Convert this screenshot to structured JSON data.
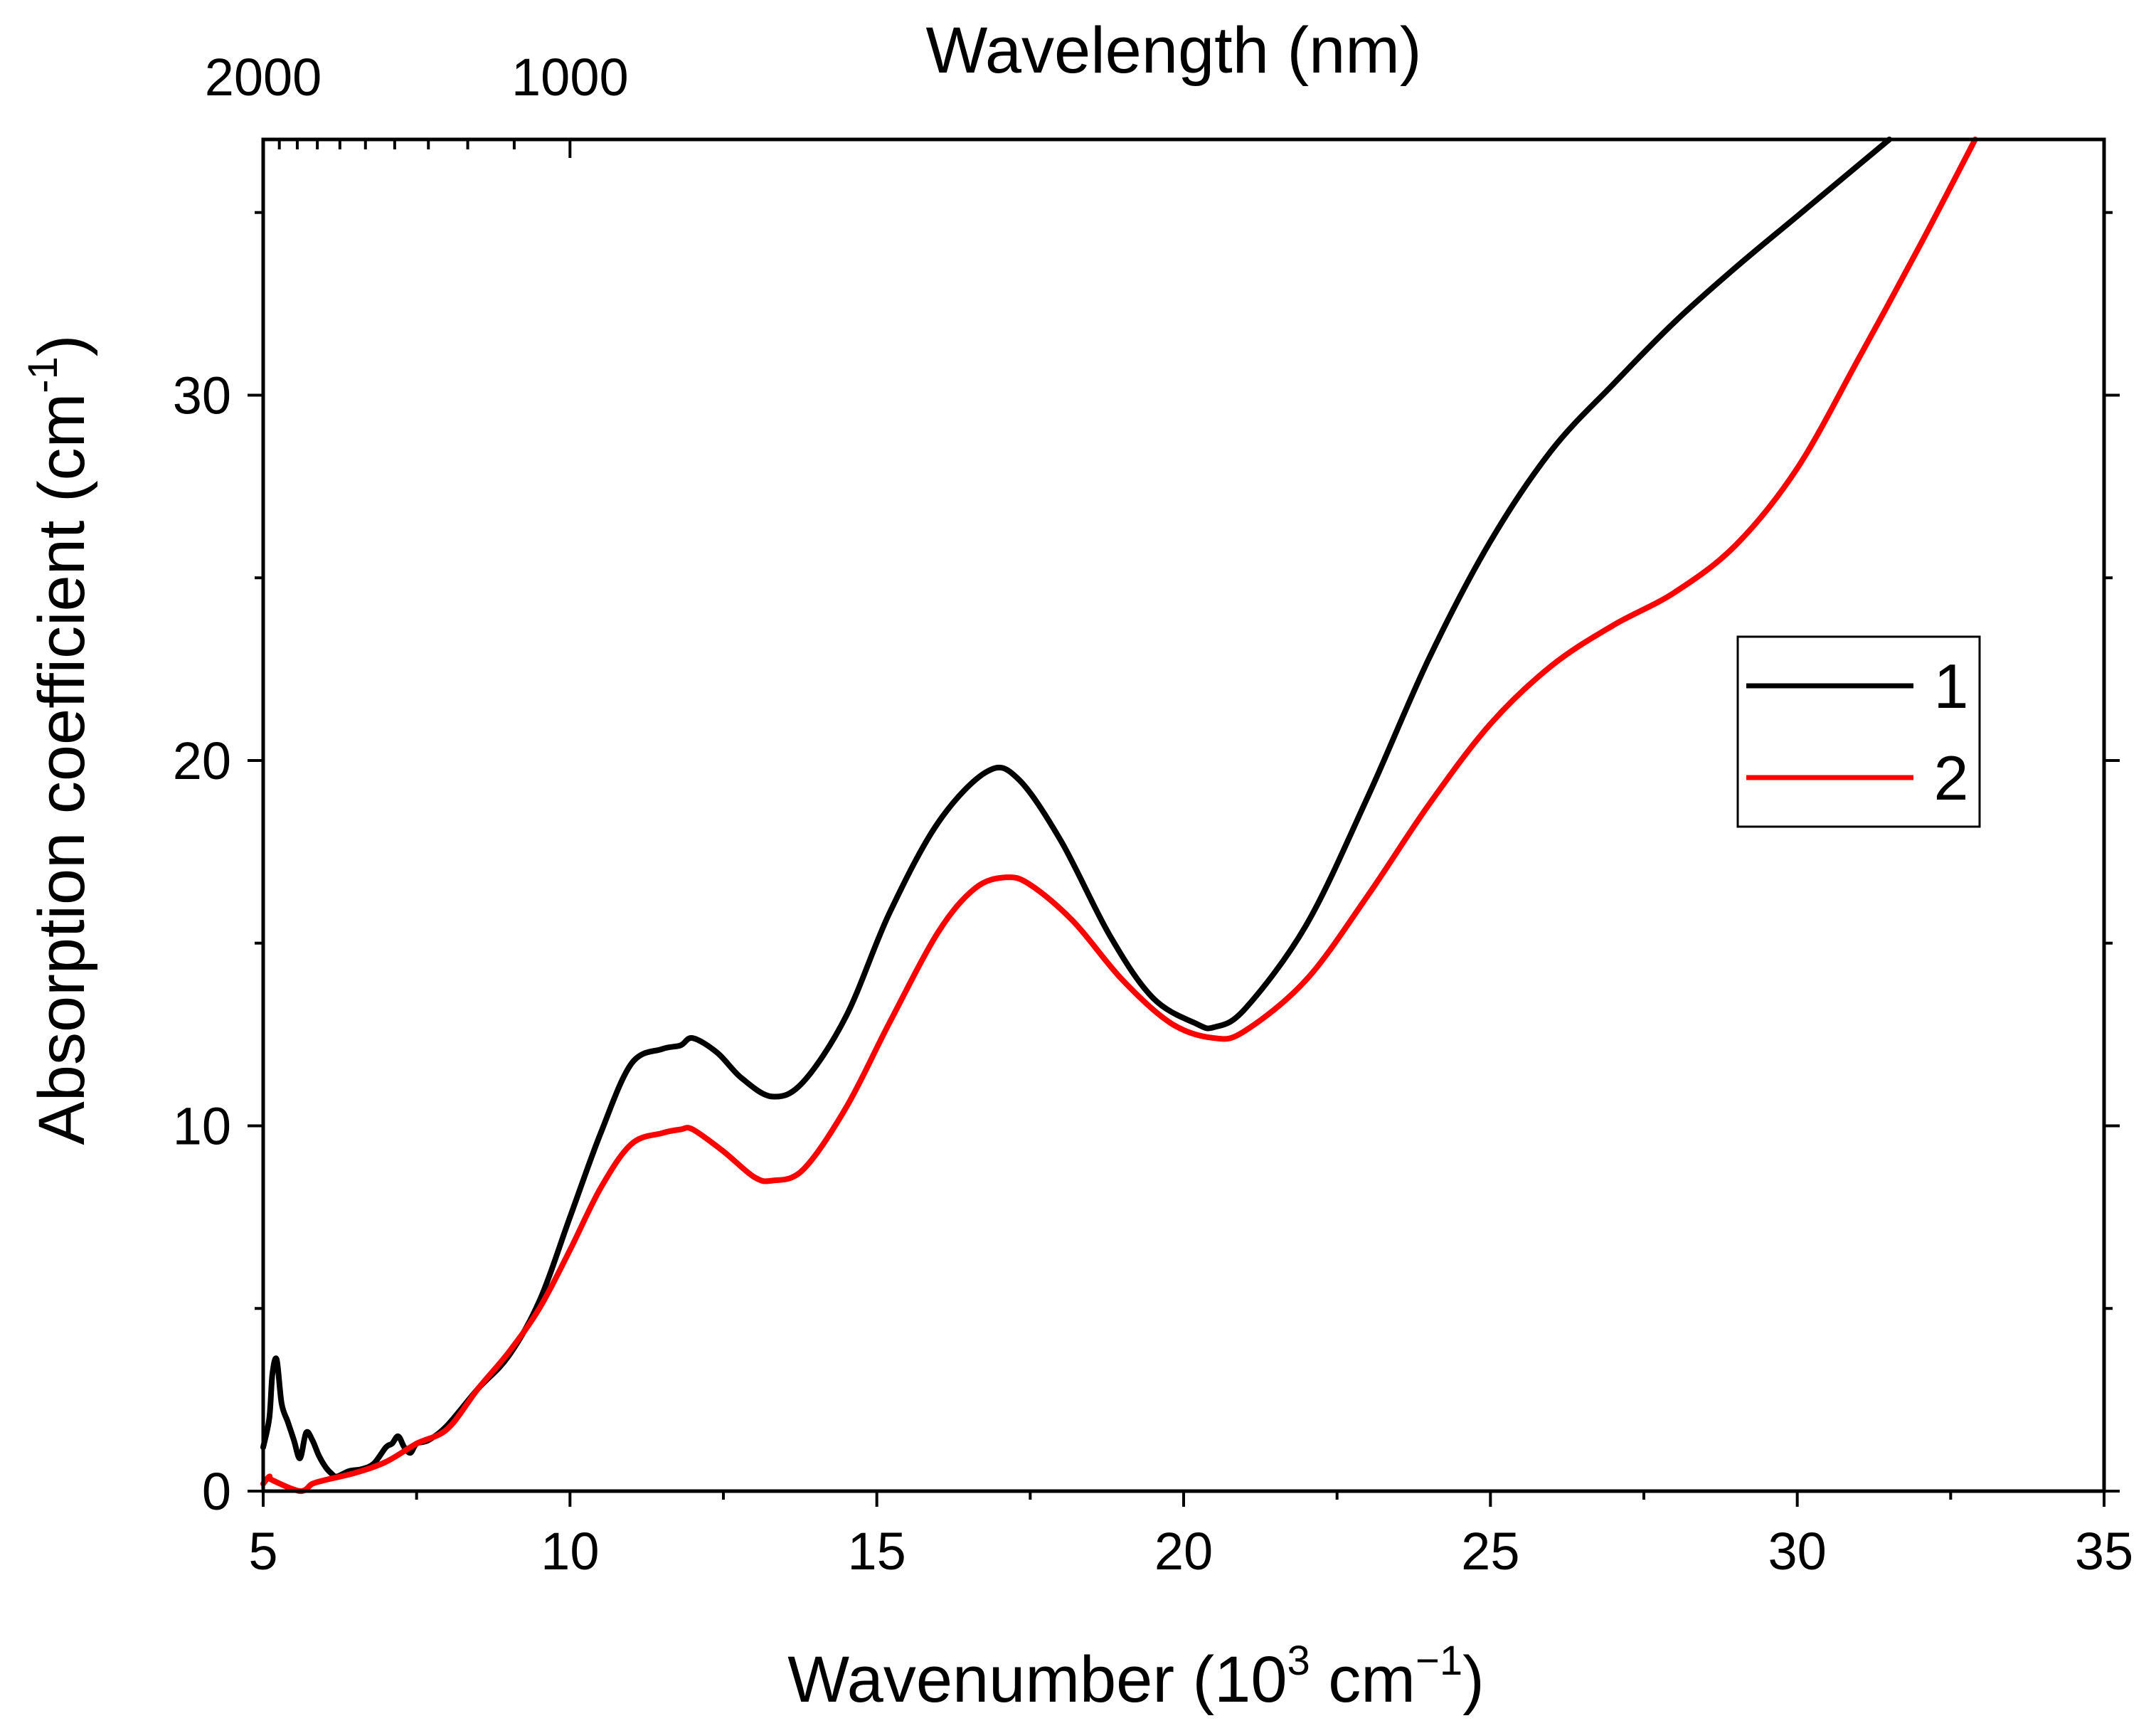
{
  "chart_data": {
    "type": "line",
    "xlabel": {
      "main": "Wavenumber (10",
      "sup1": "3",
      "mid": " cm",
      "sup2": "−1",
      "end": ")"
    },
    "ylabel": {
      "main": "Absorption coefficient (cm",
      "sup": "-1",
      "end": ")"
    },
    "top_axis_label": "Wavelength (nm)",
    "top_axis_ticks": [
      {
        "value": 2000,
        "label": "2000"
      },
      {
        "value": 1000,
        "label": "1000"
      }
    ],
    "xlim": [
      5,
      35
    ],
    "ylim": [
      0,
      37
    ],
    "xticks": [
      5,
      10,
      15,
      20,
      25,
      30,
      35
    ],
    "yticks": [
      0,
      10,
      20,
      30
    ],
    "grid": false,
    "legend_position": "right-middle",
    "series": [
      {
        "name": "1",
        "color": "#000000",
        "x": [
          5.0,
          5.1,
          5.15,
          5.22,
          5.3,
          5.4,
          5.5,
          5.6,
          5.7,
          5.8,
          5.9,
          6.0,
          6.1,
          6.2,
          6.4,
          6.6,
          6.8,
          7.0,
          7.1,
          7.2,
          7.3,
          7.4,
          7.5,
          7.7,
          8.0,
          8.5,
          9.0,
          9.5,
          10.0,
          10.5,
          11.0,
          11.5,
          11.8,
          12.0,
          12.4,
          12.8,
          13.3,
          13.8,
          14.5,
          15.2,
          16.0,
          16.8,
          17.3,
          18.0,
          18.8,
          19.5,
          20.2,
          20.5,
          21.0,
          22.0,
          23.0,
          24.0,
          25.0,
          26.0,
          27.0,
          28.0,
          29.0,
          30.0,
          31.0,
          31.5
        ],
        "values": [
          1.2,
          2.0,
          3.2,
          3.6,
          2.4,
          1.9,
          1.4,
          0.9,
          1.6,
          1.4,
          1.0,
          0.7,
          0.5,
          0.4,
          0.55,
          0.6,
          0.75,
          1.2,
          1.3,
          1.5,
          1.2,
          1.05,
          1.3,
          1.4,
          1.8,
          2.8,
          3.7,
          5.2,
          7.5,
          9.8,
          11.7,
          12.1,
          12.2,
          12.4,
          12.0,
          11.3,
          10.8,
          11.2,
          13.0,
          15.8,
          18.3,
          19.7,
          19.5,
          17.8,
          15.2,
          13.5,
          12.8,
          12.7,
          13.2,
          15.5,
          19.0,
          22.8,
          26.0,
          28.5,
          30.3,
          32.0,
          33.5,
          34.9,
          36.3,
          37.0
        ]
      },
      {
        "name": "2",
        "color": "#ff0000",
        "x": [
          5.0,
          5.1,
          5.15,
          5.6,
          5.8,
          6.0,
          6.5,
          7.0,
          7.5,
          8.0,
          8.5,
          9.0,
          9.5,
          10.0,
          10.5,
          11.0,
          11.5,
          11.8,
          12.0,
          12.5,
          13.0,
          13.3,
          13.8,
          14.5,
          15.2,
          16.0,
          16.6,
          17.1,
          17.5,
          18.2,
          19.0,
          19.8,
          20.5,
          21.0,
          22.0,
          23.0,
          24.0,
          25.0,
          26.0,
          27.0,
          28.0,
          29.0,
          30.0,
          31.0,
          32.0,
          32.9
        ],
        "values": [
          0.2,
          0.4,
          0.3,
          0.0,
          0.2,
          0.3,
          0.5,
          0.8,
          1.3,
          1.7,
          2.8,
          3.8,
          5.0,
          6.6,
          8.3,
          9.5,
          9.8,
          9.9,
          9.9,
          9.3,
          8.6,
          8.5,
          8.8,
          10.5,
          12.8,
          15.3,
          16.5,
          16.8,
          16.6,
          15.6,
          14.0,
          12.8,
          12.4,
          12.6,
          14.0,
          16.3,
          18.8,
          21.0,
          22.6,
          23.7,
          24.6,
          25.9,
          28.0,
          31.0,
          34.1,
          37.0
        ]
      }
    ]
  }
}
